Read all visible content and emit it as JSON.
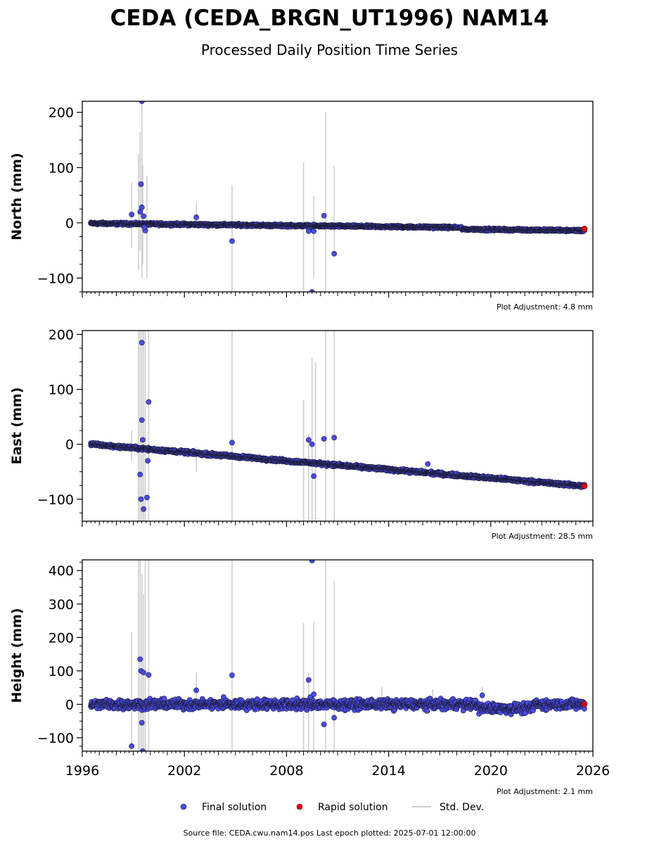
{
  "header": {
    "title": "CEDA (CEDA_BRGN_UT1996) NAM14",
    "subtitle": "Processed Daily Position Time Series"
  },
  "footer": {
    "source": "Source file: CEDA.cwu.nam14.pos  Last epoch plotted: 2025-07-01 12:00:00"
  },
  "legend": {
    "final": "Final solution",
    "rapid": "Rapid solution",
    "std": "Std. Dev."
  },
  "colors": {
    "final": "#4b4bec",
    "final_edge": "#1a1a2e",
    "rapid": "#e8000b",
    "std": "#cfcfcf"
  },
  "chart_data": [
    {
      "type": "scatter",
      "ylabel": "North (mm)",
      "adjustment": "Plot Adjustment: 4.8 mm",
      "xlim": [
        1996,
        2026
      ],
      "ylim": [
        -125,
        220
      ],
      "yticks": [
        -100,
        0,
        100,
        200
      ],
      "xticks": [
        "1996",
        "2002",
        "2008",
        "2014",
        "2020",
        "2026"
      ],
      "trend": {
        "start_year": 1996.5,
        "start": -1,
        "end_year": 2025.5,
        "end": -11,
        "noise": 1.5
      },
      "outliers": [
        [
          1998.9,
          15
        ],
        [
          1999.4,
          20
        ],
        [
          1999.45,
          70
        ],
        [
          1999.5,
          28
        ],
        [
          1999.5,
          220
        ],
        [
          1999.6,
          12
        ],
        [
          1999.7,
          -14
        ],
        [
          1999.65,
          -8
        ],
        [
          2002.7,
          10
        ],
        [
          2004.8,
          -33
        ],
        [
          2009.3,
          -15
        ],
        [
          2009.5,
          -125
        ],
        [
          2009.6,
          -15
        ],
        [
          2010.2,
          13
        ],
        [
          2010.8,
          -56
        ]
      ],
      "stddev": [
        [
          1998.9,
          -45,
          73
        ],
        [
          1999.3,
          -85,
          125
        ],
        [
          1999.4,
          -50,
          165
        ],
        [
          1999.5,
          -100,
          220
        ],
        [
          1999.55,
          -75,
          105
        ],
        [
          1999.8,
          -100,
          85
        ],
        [
          2002.7,
          -5,
          36
        ],
        [
          2004.8,
          -125,
          68
        ],
        [
          2009.0,
          -125,
          110
        ],
        [
          2009.6,
          -100,
          48
        ],
        [
          2010.3,
          -125,
          200
        ],
        [
          2010.8,
          -60,
          103
        ]
      ],
      "rapid": {
        "year": 2025.5,
        "value": -11
      }
    },
    {
      "type": "scatter",
      "ylabel": "East (mm)",
      "adjustment": "Plot Adjustment: 28.5 mm",
      "xlim": [
        1996,
        2026
      ],
      "ylim": [
        -140,
        207
      ],
      "yticks": [
        -100,
        0,
        100,
        200
      ],
      "xticks": [
        "1996",
        "2002",
        "2008",
        "2014",
        "2020",
        "2026"
      ],
      "trend": {
        "start_year": 1996.5,
        "start": 0,
        "end_year": 2025.5,
        "end": -76,
        "noise": 2
      },
      "outliers": [
        [
          1999.4,
          -55
        ],
        [
          1999.45,
          -100
        ],
        [
          1999.5,
          185
        ],
        [
          1999.5,
          44
        ],
        [
          1999.55,
          8
        ],
        [
          1999.6,
          -118
        ],
        [
          1999.8,
          -97
        ],
        [
          1999.85,
          -30
        ],
        [
          1999.9,
          77
        ],
        [
          2004.8,
          3
        ],
        [
          2009.3,
          8
        ],
        [
          2009.5,
          0
        ],
        [
          2009.6,
          -58
        ],
        [
          2010.2,
          10
        ],
        [
          2010.8,
          12
        ],
        [
          2016.3,
          -36
        ]
      ],
      "stddev": [
        [
          1998.9,
          -30,
          25
        ],
        [
          1999.3,
          -140,
          207
        ],
        [
          1999.4,
          -140,
          207
        ],
        [
          1999.5,
          -140,
          207
        ],
        [
          1999.6,
          -140,
          207
        ],
        [
          1999.7,
          -140,
          207
        ],
        [
          1999.9,
          -140,
          207
        ],
        [
          2002.7,
          -50,
          -5
        ],
        [
          2004.8,
          -140,
          207
        ],
        [
          2009.0,
          -140,
          80
        ],
        [
          2009.3,
          -140,
          18
        ],
        [
          2009.5,
          -140,
          158
        ],
        [
          2009.7,
          -140,
          150
        ],
        [
          2010.3,
          -140,
          207
        ],
        [
          2010.8,
          -140,
          207
        ]
      ],
      "rapid": {
        "year": 2025.5,
        "value": -76
      }
    },
    {
      "type": "scatter",
      "ylabel": "Height (mm)",
      "adjustment": "Plot Adjustment: 2.1 mm",
      "xlim": [
        1996,
        2026
      ],
      "ylim": [
        -140,
        432
      ],
      "yticks": [
        -100,
        0,
        100,
        200,
        300,
        400
      ],
      "xticks": [
        "1996",
        "2002",
        "2008",
        "2014",
        "2020",
        "2026"
      ],
      "trend": {
        "start_year": 1996.5,
        "start": 0,
        "end_year": 2025.5,
        "end": 0,
        "noise": 10
      },
      "outliers": [
        [
          1998.9,
          -125
        ],
        [
          1999.4,
          135
        ],
        [
          1999.45,
          100
        ],
        [
          1999.5,
          -55
        ],
        [
          1999.55,
          -140
        ],
        [
          1999.6,
          95
        ],
        [
          1999.9,
          88
        ],
        [
          2002.7,
          42
        ],
        [
          2004.3,
          22
        ],
        [
          2004.8,
          87
        ],
        [
          2009.3,
          73
        ],
        [
          2009.4,
          22
        ],
        [
          2009.5,
          430
        ],
        [
          2009.6,
          30
        ],
        [
          2010.2,
          -60
        ],
        [
          2010.8,
          -40
        ],
        [
          2019.5,
          27
        ]
      ],
      "stddev": [
        [
          1998.9,
          -140,
          215
        ],
        [
          1999.3,
          -140,
          432
        ],
        [
          1999.4,
          -140,
          432
        ],
        [
          1999.5,
          -140,
          390
        ],
        [
          1999.6,
          -140,
          330
        ],
        [
          1999.7,
          -140,
          432
        ],
        [
          1999.9,
          -140,
          432
        ],
        [
          2002.7,
          -10,
          95
        ],
        [
          2004.8,
          -140,
          432
        ],
        [
          2009.0,
          -140,
          243
        ],
        [
          2009.3,
          -140,
          95
        ],
        [
          2009.6,
          -140,
          245
        ],
        [
          2010.3,
          -140,
          432
        ],
        [
          2010.8,
          -140,
          367
        ],
        [
          2013.6,
          -10,
          52
        ],
        [
          2016.6,
          -10,
          45
        ],
        [
          2019.5,
          -10,
          52
        ]
      ],
      "rapid": {
        "year": 2025.5,
        "value": 1
      }
    }
  ]
}
